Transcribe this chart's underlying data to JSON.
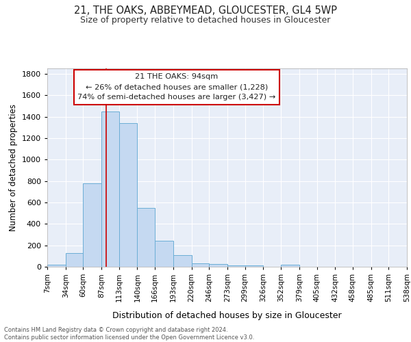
{
  "title": "21, THE OAKS, ABBEYMEAD, GLOUCESTER, GL4 5WP",
  "subtitle": "Size of property relative to detached houses in Gloucester",
  "xlabel": "Distribution of detached houses by size in Gloucester",
  "ylabel": "Number of detached properties",
  "bin_edges": [
    7,
    34,
    60,
    87,
    113,
    140,
    166,
    193,
    220,
    246,
    273,
    299,
    326,
    352,
    379,
    405,
    432,
    458,
    485,
    511,
    538
  ],
  "bar_heights": [
    20,
    130,
    780,
    1450,
    1340,
    550,
    245,
    110,
    35,
    25,
    15,
    15,
    0,
    20,
    0,
    0,
    0,
    0,
    0,
    0
  ],
  "bar_color": "#c5d9f1",
  "bar_edge_color": "#6baed6",
  "property_size": 94,
  "red_line_color": "#cc0000",
  "annotation_text": "21 THE OAKS: 94sqm\n← 26% of detached houses are smaller (1,228)\n74% of semi-detached houses are larger (3,427) →",
  "annotation_box_color": "#ffffff",
  "annotation_box_edge": "#cc0000",
  "footer_text": "Contains HM Land Registry data © Crown copyright and database right 2024.\nContains public sector information licensed under the Open Government Licence v3.0.",
  "bg_color": "#e8eef8",
  "ylim": [
    0,
    1850
  ],
  "tick_labels": [
    "7sqm",
    "34sqm",
    "60sqm",
    "87sqm",
    "113sqm",
    "140sqm",
    "166sqm",
    "193sqm",
    "220sqm",
    "246sqm",
    "273sqm",
    "299sqm",
    "326sqm",
    "352sqm",
    "379sqm",
    "405sqm",
    "432sqm",
    "458sqm",
    "485sqm",
    "511sqm",
    "538sqm"
  ]
}
